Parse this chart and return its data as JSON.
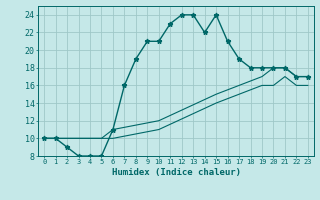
{
  "xlabel": "Humidex (Indice chaleur)",
  "bg_color": "#c5e8e8",
  "grid_color": "#9fc8c8",
  "line_color": "#006868",
  "xlim": [
    -0.5,
    23.5
  ],
  "ylim": [
    8,
    25
  ],
  "xticks": [
    0,
    1,
    2,
    3,
    4,
    5,
    6,
    7,
    8,
    9,
    10,
    11,
    12,
    13,
    14,
    15,
    16,
    17,
    18,
    19,
    20,
    21,
    22,
    23
  ],
  "yticks": [
    8,
    10,
    12,
    14,
    16,
    18,
    20,
    22,
    24
  ],
  "curve1_x": [
    0,
    1,
    2,
    3,
    4,
    5,
    6,
    7,
    8,
    9,
    10,
    11,
    12,
    13,
    14,
    15,
    16,
    17,
    18,
    19,
    20,
    21,
    22,
    23
  ],
  "curve1_y": [
    10,
    10,
    9,
    8,
    8,
    8,
    11,
    16,
    19,
    21,
    21,
    23,
    24,
    24,
    22,
    24,
    21,
    19,
    18,
    18,
    18,
    18,
    17,
    17
  ],
  "curve2_x": [
    0,
    5,
    6,
    10,
    15,
    19,
    20,
    21,
    22,
    23
  ],
  "curve2_y": [
    10,
    10,
    11,
    12,
    15,
    17,
    18,
    18,
    17,
    17
  ],
  "curve3_x": [
    0,
    5,
    6,
    10,
    15,
    19,
    20,
    21,
    22,
    23
  ],
  "curve3_y": [
    10,
    10,
    10,
    11,
    14,
    16,
    16,
    17,
    16,
    16
  ]
}
